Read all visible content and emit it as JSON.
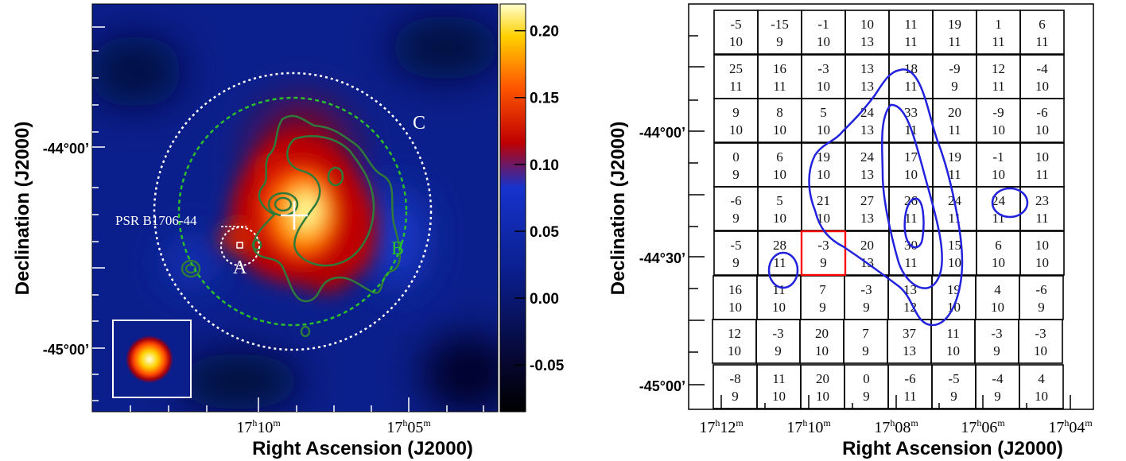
{
  "chart_data": [
    {
      "type": "heatmap",
      "xlabel": "Right Ascension (J2000)",
      "ylabel": "Declination (J2000)",
      "x_ticks": [
        {
          "h": "17",
          "m": "10"
        },
        {
          "h": "17",
          "m": "05"
        }
      ],
      "y_ticks": [
        "-44°00’",
        "-45°00’"
      ],
      "colorbar": {
        "ticks": [
          "0.20",
          "0.15",
          "0.10",
          "0.05",
          "0.00",
          "-0.05"
        ],
        "values": [
          0.2,
          0.15,
          0.1,
          0.05,
          0.0,
          -0.05
        ],
        "range": [
          -0.085,
          0.22
        ],
        "colors": [
          "#000000",
          "#06062f",
          "#0a1e8c",
          "#1633cc",
          "#c00000",
          "#ff5a00",
          "#ffd000",
          "#ffffcc"
        ]
      },
      "annotations": {
        "pulsar": "PSR B1706-44",
        "region_a": "A",
        "region_b": "B",
        "region_c": "C"
      },
      "colors": {
        "contour": "#2f7a3a",
        "ring_b": "#2bc02b",
        "ring_c": "#ffffff",
        "psf_box": "#ffffff"
      }
    },
    {
      "type": "table",
      "xlabel": "Right Ascension (J2000)",
      "ylabel": "Declination (J2000)",
      "x_ticks": [
        {
          "h": "17",
          "m": "12"
        },
        {
          "h": "17",
          "m": "10"
        },
        {
          "h": "17",
          "m": "08"
        },
        {
          "h": "17",
          "m": "06"
        },
        {
          "h": "17",
          "m": "04"
        }
      ],
      "y_ticks": [
        "-44°00’",
        "-44°30’",
        "-45°00’"
      ],
      "grid": [
        [
          [
            "-5",
            "10"
          ],
          [
            "-15",
            "9"
          ],
          [
            "-1",
            "10"
          ],
          [
            "10",
            "13"
          ],
          [
            "11",
            "11"
          ],
          [
            "19",
            "11"
          ],
          [
            "1",
            "11"
          ],
          [
            "6",
            "11"
          ]
        ],
        [
          [
            "25",
            "11"
          ],
          [
            "16",
            "11"
          ],
          [
            "-3",
            "10"
          ],
          [
            "13",
            "13"
          ],
          [
            "18",
            "11"
          ],
          [
            "-9",
            "9"
          ],
          [
            "12",
            "11"
          ],
          [
            "-4",
            "10"
          ]
        ],
        [
          [
            "9",
            "10"
          ],
          [
            "8",
            "10"
          ],
          [
            "5",
            "10"
          ],
          [
            "24",
            "13"
          ],
          [
            "33",
            "11"
          ],
          [
            "20",
            "11"
          ],
          [
            "-9",
            "10"
          ],
          [
            "-6",
            "10"
          ]
        ],
        [
          [
            "0",
            "9"
          ],
          [
            "6",
            "10"
          ],
          [
            "19",
            "10"
          ],
          [
            "24",
            "13"
          ],
          [
            "17",
            "10"
          ],
          [
            "19",
            "11"
          ],
          [
            "-1",
            "10"
          ],
          [
            "10",
            "11"
          ]
        ],
        [
          [
            "-6",
            "9"
          ],
          [
            "5",
            "10"
          ],
          [
            "21",
            "10"
          ],
          [
            "27",
            "13"
          ],
          [
            "26",
            "11"
          ],
          [
            "24",
            "11"
          ],
          [
            "24",
            "11"
          ],
          [
            "23",
            "11"
          ]
        ],
        [
          [
            "-5",
            "9"
          ],
          [
            "28",
            "11"
          ],
          [
            "-3",
            "9"
          ],
          [
            "20",
            "13"
          ],
          [
            "30",
            "11"
          ],
          [
            "15",
            "10"
          ],
          [
            "6",
            "10"
          ],
          [
            "10",
            "10"
          ]
        ],
        [
          [
            "16",
            "10"
          ],
          [
            "11",
            "10"
          ],
          [
            "7",
            "9"
          ],
          [
            "-3",
            "9"
          ],
          [
            "13",
            "12"
          ],
          [
            "19",
            "10"
          ],
          [
            "4",
            "10"
          ],
          [
            "-6",
            "9"
          ]
        ],
        [
          [
            "12",
            "10"
          ],
          [
            "-3",
            "9"
          ],
          [
            "20",
            "10"
          ],
          [
            "7",
            "9"
          ],
          [
            "37",
            "13"
          ],
          [
            "11",
            "10"
          ],
          [
            "-3",
            "9"
          ],
          [
            "-3",
            "10"
          ]
        ],
        [
          [
            "-8",
            "9"
          ],
          [
            "11",
            "10"
          ],
          [
            "20",
            "10"
          ],
          [
            "0",
            "9"
          ],
          [
            "-6",
            "11"
          ],
          [
            "-5",
            "9"
          ],
          [
            "-4",
            "9"
          ],
          [
            "4",
            "10"
          ]
        ]
      ],
      "highlight": {
        "row": 5,
        "col": 2,
        "color": "#ff0000"
      },
      "colors": {
        "contour": "#2222dd"
      }
    }
  ]
}
